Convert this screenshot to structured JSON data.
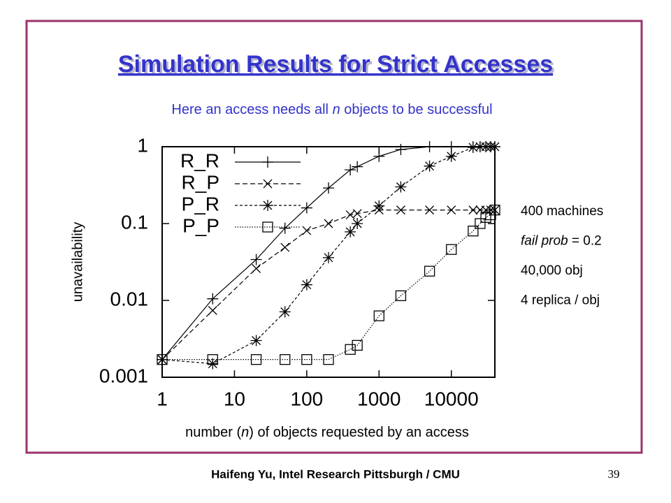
{
  "chart_data": {
    "type": "line",
    "title": "Simulation Results for Strict Accesses",
    "subtitle": [
      "Here an access needs all ",
      "n",
      " objects to be successful"
    ],
    "x_label": [
      "number (",
      "n",
      ") of objects requested by an access"
    ],
    "y_label": "unavailability",
    "log_x": true,
    "log_y": true,
    "grid": false,
    "legend": "upper left",
    "x": [
      1,
      5,
      20,
      50,
      100,
      200,
      400,
      500,
      1000,
      2000,
      5000,
      10000,
      20000,
      25000,
      30000,
      35000,
      40000
    ],
    "xlim": [
      1,
      40000
    ],
    "xticks": [
      1,
      10,
      100,
      1000,
      10000
    ],
    "ylim": [
      0.001,
      1
    ],
    "yticks": [
      1,
      0.1,
      0.01,
      0.001
    ],
    "series": [
      {
        "name": "R_R",
        "color": "#000000",
        "marker": "plus",
        "dash": "solid",
        "values": [
          0.0017,
          0.0105,
          0.034,
          0.087,
          0.16,
          0.29,
          0.5,
          0.55,
          0.75,
          0.92,
          1,
          1,
          1,
          1,
          1,
          1,
          1
        ]
      },
      {
        "name": "R_P",
        "color": "#000000",
        "marker": "cross",
        "dash": "dashed",
        "values": [
          0.0017,
          0.0074,
          0.026,
          0.049,
          0.081,
          0.1,
          0.13,
          0.135,
          0.15,
          0.15,
          0.15,
          0.15,
          0.15,
          0.15,
          0.15,
          0.15,
          0.15
        ]
      },
      {
        "name": "P_R",
        "color": "#000000",
        "marker": "star",
        "dash": "short-dashed",
        "values": [
          0.0017,
          0.0015,
          0.003,
          0.0071,
          0.016,
          0.036,
          0.078,
          0.1,
          0.17,
          0.3,
          0.56,
          0.75,
          0.98,
          1,
          1,
          1,
          1
        ]
      },
      {
        "name": "P_P",
        "color": "#000000",
        "marker": "square",
        "dash": "dotted",
        "values": [
          0.0017,
          0.0017,
          0.0017,
          0.0017,
          0.0017,
          0.0017,
          0.0023,
          0.0026,
          0.0063,
          0.0115,
          0.024,
          0.046,
          0.08,
          0.1,
          0.12,
          0.13,
          0.15
        ]
      }
    ],
    "annotations": [
      [
        {
          "text": "400 machines",
          "italic": false
        }
      ],
      [
        {
          "text": "fail prob",
          "italic": true
        },
        {
          "text": " = 0.2",
          "italic": false
        }
      ],
      [
        {
          "text": "40,000 obj",
          "italic": false
        }
      ],
      [
        {
          "text": "4 replica / obj",
          "italic": false
        }
      ]
    ]
  },
  "footer": {
    "text": "Haifeng Yu, Intel Research Pittsburgh / CMU",
    "page": "39"
  }
}
